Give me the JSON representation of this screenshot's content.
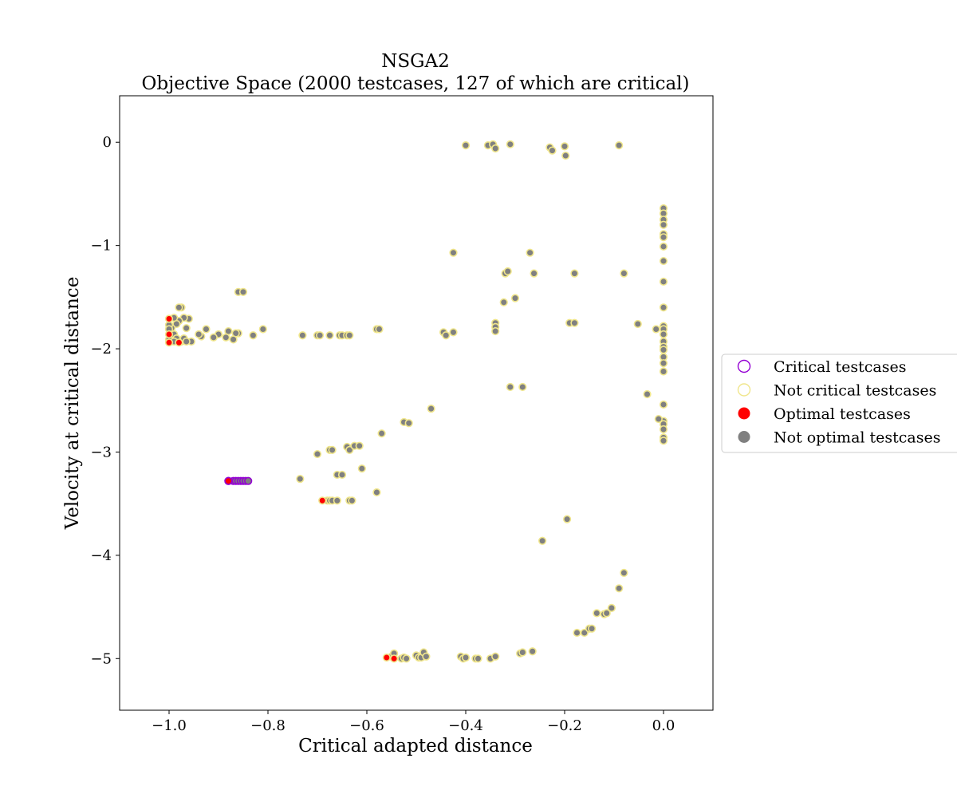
{
  "chart_data": {
    "type": "scatter",
    "title": "NSGA2",
    "subtitle": "Objective Space (2000 testcases, 127 of which are critical)",
    "xlabel": "Critical adapted distance",
    "ylabel": "Velocity at critical distance",
    "xlim": [
      -1.1,
      0.1
    ],
    "ylim": [
      -5.5,
      0.45
    ],
    "xticks": [
      -1.0,
      -0.8,
      -0.6,
      -0.4,
      -0.2,
      0.0
    ],
    "xtick_labels": [
      "−1.0",
      "−0.8",
      "−0.6",
      "−0.4",
      "−0.2",
      "0.0"
    ],
    "yticks": [
      0,
      -1,
      -2,
      -3,
      -4,
      -5
    ],
    "ytick_labels": [
      "0",
      "−1",
      "−2",
      "−3",
      "−4",
      "−5"
    ],
    "grid": false,
    "legend_position": "right, outside plot",
    "colors": {
      "critical_edge": "#9400d3",
      "not_critical_edge": "#f0e68c",
      "optimal_fill": "#ff0000",
      "not_optimal_fill": "#808080"
    },
    "legend": [
      {
        "label": "Critical testcases",
        "style": "critical"
      },
      {
        "label": "Not critical testcases",
        "style": "not_critical"
      },
      {
        "label": "Optimal testcases",
        "style": "optimal"
      },
      {
        "label": "Not optimal testcases",
        "style": "not_optimal"
      }
    ],
    "series": [
      {
        "name": "Not critical testcases",
        "edge": "not_critical",
        "fill": "not_optimal",
        "points": [
          [
            -0.4,
            -0.03
          ],
          [
            -0.355,
            -0.03
          ],
          [
            -0.345,
            -0.02
          ],
          [
            -0.34,
            -0.06
          ],
          [
            -0.31,
            -0.02
          ],
          [
            -0.23,
            -0.05
          ],
          [
            -0.225,
            -0.08
          ],
          [
            -0.2,
            -0.04
          ],
          [
            -0.198,
            -0.13
          ],
          [
            -0.09,
            -0.03
          ],
          [
            0.0,
            -0.64
          ],
          [
            0.0,
            -0.69
          ],
          [
            0.0,
            -0.75
          ],
          [
            0.0,
            -0.8
          ],
          [
            0.0,
            -0.89
          ],
          [
            0.0,
            -0.92
          ],
          [
            0.0,
            -1.01
          ],
          [
            0.0,
            -1.15
          ],
          [
            0.0,
            -1.35
          ],
          [
            0.0,
            -1.6
          ],
          [
            0.0,
            -1.78
          ],
          [
            0.0,
            -1.81
          ],
          [
            0.0,
            -1.86
          ],
          [
            0.0,
            -1.93
          ],
          [
            0.0,
            -1.98
          ],
          [
            0.0,
            -2.01
          ],
          [
            0.0,
            -2.08
          ],
          [
            0.0,
            -2.14
          ],
          [
            0.0,
            -2.22
          ],
          [
            0.0,
            -2.54
          ],
          [
            0.0,
            -2.7
          ],
          [
            0.0,
            -2.73
          ],
          [
            0.0,
            -2.78
          ],
          [
            0.0,
            -2.86
          ],
          [
            0.0,
            -2.89
          ],
          [
            -0.01,
            -2.68
          ],
          [
            -0.015,
            -1.81
          ],
          [
            -0.033,
            -2.44
          ],
          [
            -0.052,
            -1.76
          ],
          [
            -0.08,
            -1.27
          ],
          [
            -0.425,
            -1.07
          ],
          [
            -0.32,
            -1.27
          ],
          [
            -0.315,
            -1.25
          ],
          [
            -0.27,
            -1.07
          ],
          [
            -0.262,
            -1.27
          ],
          [
            -0.18,
            -1.27
          ],
          [
            -0.323,
            -1.55
          ],
          [
            -0.3,
            -1.51
          ],
          [
            -0.34,
            -1.75
          ],
          [
            -0.34,
            -1.79
          ],
          [
            -0.34,
            -1.83
          ],
          [
            -0.19,
            -1.75
          ],
          [
            -0.18,
            -1.75
          ],
          [
            -0.445,
            -1.84
          ],
          [
            -0.44,
            -1.87
          ],
          [
            -0.425,
            -1.84
          ],
          [
            -0.58,
            -1.81
          ],
          [
            -0.575,
            -1.81
          ],
          [
            -0.31,
            -2.37
          ],
          [
            -0.285,
            -2.37
          ],
          [
            -0.47,
            -2.58
          ],
          [
            -0.525,
            -2.71
          ],
          [
            -0.515,
            -2.72
          ],
          [
            -0.57,
            -2.82
          ],
          [
            -0.64,
            -2.95
          ],
          [
            -0.635,
            -2.98
          ],
          [
            -0.625,
            -2.94
          ],
          [
            -0.615,
            -2.94
          ],
          [
            -0.675,
            -2.98
          ],
          [
            -0.67,
            -2.98
          ],
          [
            -0.7,
            -3.02
          ],
          [
            -0.61,
            -3.16
          ],
          [
            -0.66,
            -3.22
          ],
          [
            -0.65,
            -3.22
          ],
          [
            -0.735,
            -3.26
          ],
          [
            -0.58,
            -3.39
          ],
          [
            -0.68,
            -3.47
          ],
          [
            -0.675,
            -3.47
          ],
          [
            -0.67,
            -3.47
          ],
          [
            -0.66,
            -3.47
          ],
          [
            -0.635,
            -3.47
          ],
          [
            -0.63,
            -3.47
          ],
          [
            -0.195,
            -3.65
          ],
          [
            -0.245,
            -3.86
          ],
          [
            -0.08,
            -4.17
          ],
          [
            -0.09,
            -4.32
          ],
          [
            -0.135,
            -4.56
          ],
          [
            -0.12,
            -4.57
          ],
          [
            -0.115,
            -4.56
          ],
          [
            -0.105,
            -4.51
          ],
          [
            -0.175,
            -4.75
          ],
          [
            -0.16,
            -4.75
          ],
          [
            -0.15,
            -4.71
          ],
          [
            -0.145,
            -4.71
          ],
          [
            -0.265,
            -4.93
          ],
          [
            -0.29,
            -4.95
          ],
          [
            -0.285,
            -4.94
          ],
          [
            -0.55,
            -4.98
          ],
          [
            -0.545,
            -4.95
          ],
          [
            -0.53,
            -5.0
          ],
          [
            -0.525,
            -4.99
          ],
          [
            -0.52,
            -5.0
          ],
          [
            -0.5,
            -4.97
          ],
          [
            -0.495,
            -4.99
          ],
          [
            -0.49,
            -4.99
          ],
          [
            -0.485,
            -4.94
          ],
          [
            -0.48,
            -4.98
          ],
          [
            -0.41,
            -4.98
          ],
          [
            -0.405,
            -5.0
          ],
          [
            -0.4,
            -4.99
          ],
          [
            -0.38,
            -5.0
          ],
          [
            -0.375,
            -5.0
          ],
          [
            -0.35,
            -5.0
          ],
          [
            -0.34,
            -4.98
          ],
          [
            -0.73,
            -1.87
          ],
          [
            -0.7,
            -1.87
          ],
          [
            -0.695,
            -1.87
          ],
          [
            -0.675,
            -1.87
          ],
          [
            -0.655,
            -1.87
          ],
          [
            -0.65,
            -1.87
          ],
          [
            -0.64,
            -1.87
          ],
          [
            -0.635,
            -1.87
          ],
          [
            -0.81,
            -1.81
          ],
          [
            -0.83,
            -1.87
          ],
          [
            -0.86,
            -1.85
          ],
          [
            -0.865,
            -1.85
          ],
          [
            -0.87,
            -1.91
          ],
          [
            -0.88,
            -1.83
          ],
          [
            -0.885,
            -1.89
          ],
          [
            -0.9,
            -1.86
          ],
          [
            -0.91,
            -1.89
          ],
          [
            -0.925,
            -1.81
          ],
          [
            -0.935,
            -1.88
          ],
          [
            -0.94,
            -1.86
          ],
          [
            -0.955,
            -1.93
          ],
          [
            -0.96,
            -1.71
          ],
          [
            -0.965,
            -1.8
          ],
          [
            -0.97,
            -1.7
          ],
          [
            -0.975,
            -1.6
          ],
          [
            -0.98,
            -1.6
          ],
          [
            -0.98,
            -1.73
          ],
          [
            -0.985,
            -1.76
          ],
          [
            -0.99,
            -1.7
          ],
          [
            -0.99,
            -1.86
          ],
          [
            -0.995,
            -1.8
          ],
          [
            -1.0,
            -1.77
          ],
          [
            -1.0,
            -1.81
          ],
          [
            -1.0,
            -1.91
          ],
          [
            -0.975,
            -1.93
          ],
          [
            -0.97,
            -1.9
          ],
          [
            -0.965,
            -1.93
          ],
          [
            -0.985,
            -1.9
          ],
          [
            -0.99,
            -1.93
          ],
          [
            -0.86,
            -1.45
          ],
          [
            -0.85,
            -1.45
          ]
        ]
      },
      {
        "name": "Critical testcases",
        "edge": "critical",
        "fill": "not_optimal",
        "points": [
          [
            -0.88,
            -3.28
          ],
          [
            -0.87,
            -3.28
          ],
          [
            -0.865,
            -3.28
          ],
          [
            -0.86,
            -3.28
          ],
          [
            -0.855,
            -3.28
          ],
          [
            -0.85,
            -3.28
          ],
          [
            -0.845,
            -3.28
          ],
          [
            -0.84,
            -3.28
          ]
        ]
      },
      {
        "name": "Optimal testcases",
        "edge": "not_critical",
        "fill": "optimal",
        "points": [
          [
            -1.0,
            -1.71
          ],
          [
            -1.0,
            -1.86
          ],
          [
            -1.0,
            -1.94
          ],
          [
            -0.98,
            -1.94
          ],
          [
            -0.69,
            -3.47
          ],
          [
            -0.56,
            -4.99
          ],
          [
            -0.545,
            -5.0
          ]
        ]
      },
      {
        "name": "Optimal critical testcases",
        "edge": "critical",
        "fill": "optimal",
        "points": [
          [
            -0.88,
            -3.28
          ]
        ]
      }
    ]
  }
}
